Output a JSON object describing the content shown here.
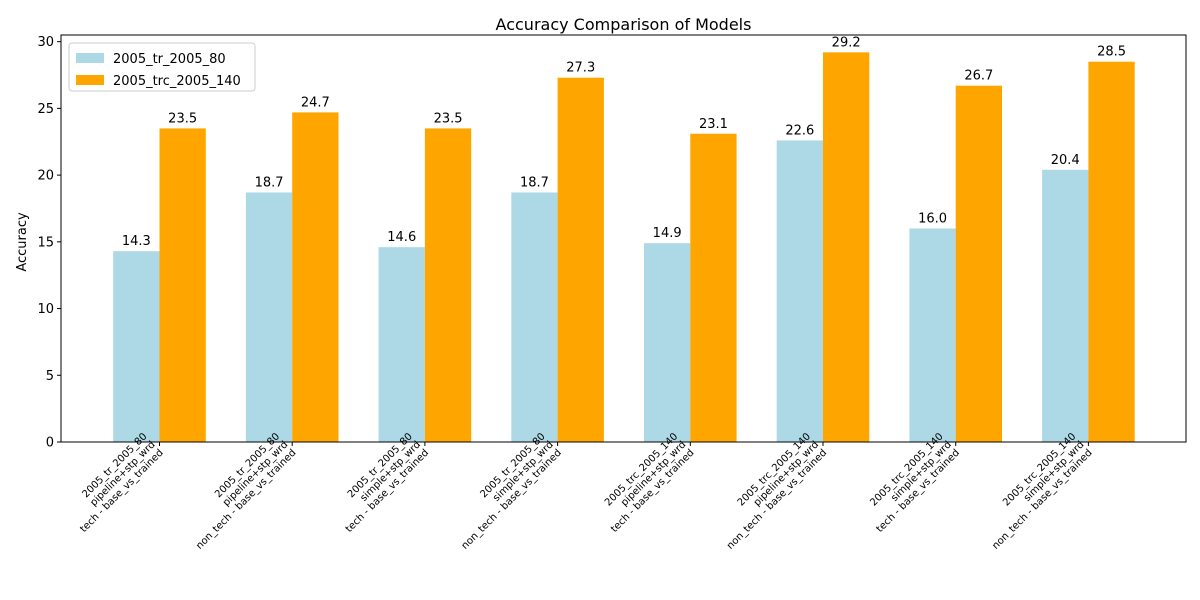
{
  "chart_data": {
    "type": "bar",
    "title": "Accuracy Comparison of Models",
    "xlabel": "",
    "ylabel": "Accuracy",
    "ylim": [
      0,
      30.5
    ],
    "yticks": [
      "0",
      "5",
      "10",
      "15",
      "20",
      "25",
      "30"
    ],
    "legend_position": "top-left",
    "grid": false,
    "categories": [
      [
        "2005_tr_2005_80",
        "pipeline+stp_wrd",
        "tech - base_vs_trained"
      ],
      [
        "2005_tr_2005_80",
        "pipeline+stp_wrd",
        "non_tech - base_vs_trained"
      ],
      [
        "2005_tr_2005_80",
        "simple+stp_wrd",
        "tech - base_vs_trained"
      ],
      [
        "2005_tr_2005_80",
        "simple+stp_wrd",
        "non_tech - base_vs_trained"
      ],
      [
        "2005_trc_2005_140",
        "pipeline+stp_wrd",
        "tech - base_vs_trained"
      ],
      [
        "2005_trc_2005_140",
        "pipeline+stp_wrd",
        "non_tech - base_vs_trained"
      ],
      [
        "2005_trc_2005_140",
        "simple+stp_wrd",
        "tech - base_vs_trained"
      ],
      [
        "2005_trc_2005_140",
        "simple+stp_wrd",
        "non_tech - base_vs_trained"
      ]
    ],
    "series": [
      {
        "name": "2005_tr_2005_80",
        "color": "#add8e6",
        "values": [
          14.3,
          18.7,
          14.6,
          18.7,
          14.9,
          22.6,
          16.0,
          20.4
        ],
        "labels": [
          "14.3",
          "18.7",
          "14.6",
          "18.7",
          "14.9",
          "22.6",
          "16.0",
          "20.4"
        ]
      },
      {
        "name": "2005_trc_2005_140",
        "color": "#ffa500",
        "values": [
          23.5,
          24.7,
          23.5,
          27.3,
          23.1,
          29.2,
          26.7,
          28.5
        ],
        "labels": [
          "23.5",
          "24.7",
          "23.5",
          "27.3",
          "23.1",
          "29.2",
          "26.7",
          "28.5"
        ]
      }
    ]
  }
}
